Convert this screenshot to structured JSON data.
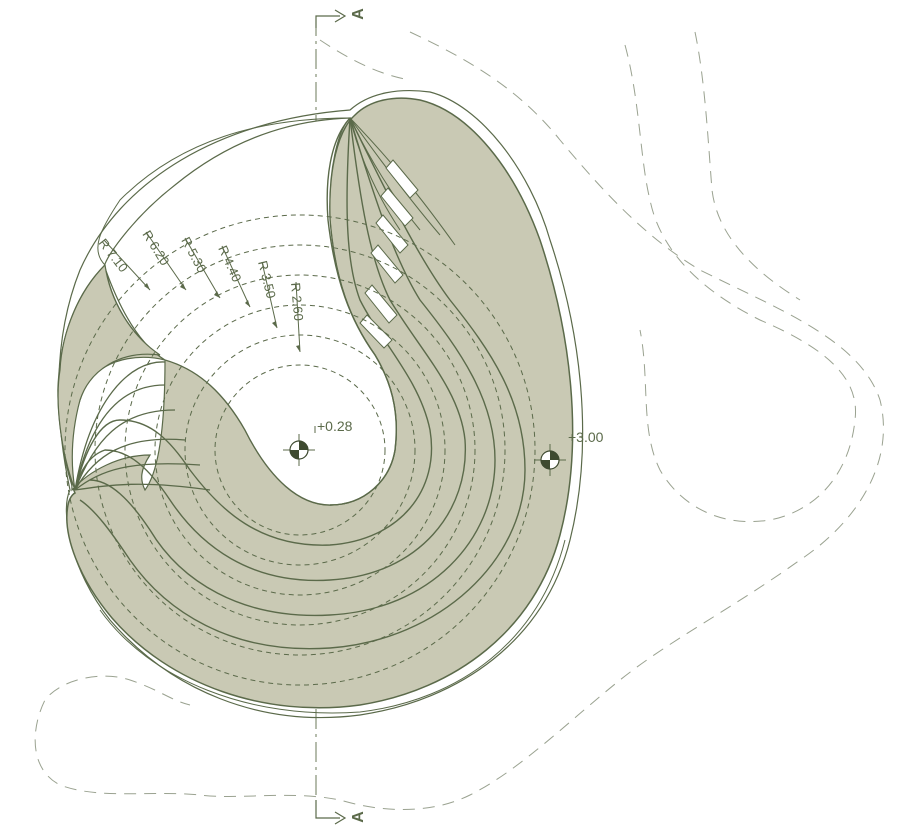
{
  "drawing": {
    "section_marker": "A",
    "levels": [
      "+0.28",
      "+3.00"
    ],
    "radii": [
      "R 7.10",
      "R 6.20",
      "R 5.30",
      "R 4.40",
      "R 3.50",
      "R 2.60"
    ]
  },
  "colors": {
    "fill": "#c9c9b4",
    "ink": "#5b6a4a",
    "background": "#ffffff"
  },
  "icons": [
    "level-marker-icon",
    "section-arrow-icon"
  ]
}
